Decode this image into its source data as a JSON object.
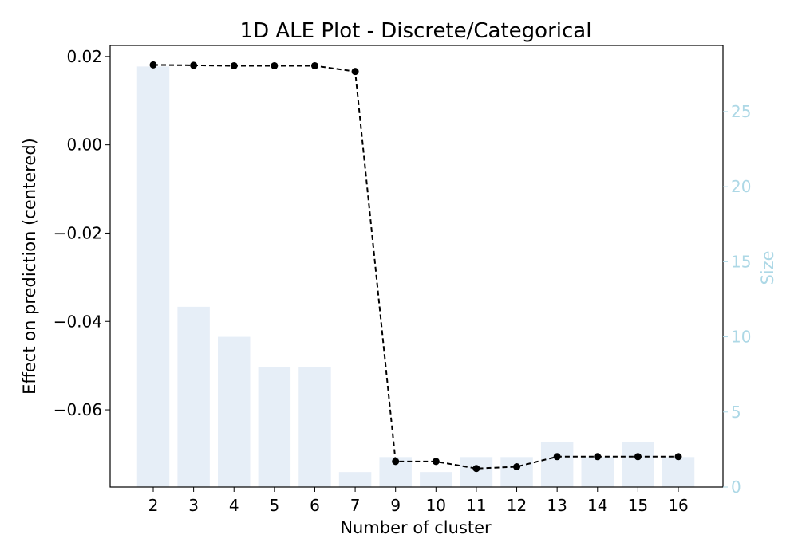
{
  "chart_data": {
    "type": "bar+line",
    "title": "1D ALE Plot - Discrete/Categorical",
    "xlabel": "Number of cluster",
    "ylabel": "Effect on prediction (centered)",
    "ylabel_right": "Size",
    "categories": [
      "2",
      "3",
      "4",
      "5",
      "6",
      "7",
      "9",
      "10",
      "11",
      "12",
      "13",
      "14",
      "15",
      "16"
    ],
    "effect": [
      0.0181,
      0.018,
      0.0179,
      0.0179,
      0.0179,
      0.0166,
      -0.0717,
      -0.0717,
      -0.0733,
      -0.0729,
      -0.0706,
      -0.0706,
      -0.0706,
      -0.0706
    ],
    "size": [
      28,
      12,
      10,
      8,
      8,
      1,
      2,
      1,
      2,
      2,
      3,
      2,
      3,
      2
    ],
    "ylim": [
      -0.0775,
      0.0225
    ],
    "ylim_right": [
      0,
      29.4
    ],
    "yticks": [
      {
        "value": 0.02,
        "label": "0.02"
      },
      {
        "value": 0.0,
        "label": "0.00"
      },
      {
        "value": -0.02,
        "label": "−0.02"
      },
      {
        "value": -0.04,
        "label": "−0.04"
      },
      {
        "value": -0.06,
        "label": "−0.06"
      }
    ],
    "yticks_right": [
      {
        "value": 0,
        "label": "0"
      },
      {
        "value": 5,
        "label": "5"
      },
      {
        "value": 10,
        "label": "10"
      },
      {
        "value": 15,
        "label": "15"
      },
      {
        "value": 20,
        "label": "20"
      },
      {
        "value": 25,
        "label": "25"
      }
    ],
    "colors": {
      "bar": "#e6eef7",
      "line": "#000000",
      "right_axis": "#add8e6"
    },
    "grid": false,
    "line_style": "dashed"
  }
}
